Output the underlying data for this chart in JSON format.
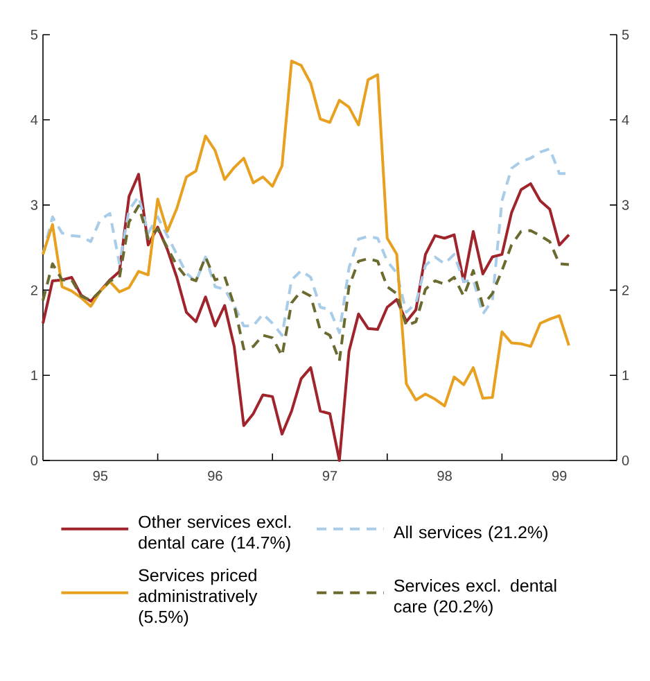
{
  "chart_data": {
    "type": "line",
    "x": [
      "1995-01",
      "1995-02",
      "1995-03",
      "1995-04",
      "1995-05",
      "1995-06",
      "1995-07",
      "1995-08",
      "1995-09",
      "1995-10",
      "1995-11",
      "1995-12",
      "1996-01",
      "1996-02",
      "1996-03",
      "1996-04",
      "1996-05",
      "1996-06",
      "1996-07",
      "1996-08",
      "1996-09",
      "1996-10",
      "1996-11",
      "1996-12",
      "1997-01",
      "1997-02",
      "1997-03",
      "1997-04",
      "1997-05",
      "1997-06",
      "1997-07",
      "1997-08",
      "1997-09",
      "1997-10",
      "1997-11",
      "1997-12",
      "1998-01",
      "1998-02",
      "1998-03",
      "1998-04",
      "1998-05",
      "1998-06",
      "1998-07",
      "1998-08",
      "1998-09",
      "1998-10",
      "1998-11",
      "1998-12",
      "1999-01",
      "1999-02",
      "1999-03",
      "1999-04",
      "1999-05",
      "1999-06",
      "1999-07",
      "1999-08"
    ],
    "series": [
      {
        "name": "Other services excl. dental care (14.7%)",
        "color": "#a0242c",
        "line_style": "solid",
        "values": [
          1.61,
          2.11,
          2.12,
          2.15,
          1.94,
          1.87,
          1.99,
          2.12,
          2.22,
          3.1,
          3.36,
          2.53,
          2.74,
          2.48,
          2.15,
          1.74,
          1.63,
          1.92,
          1.58,
          1.82,
          1.34,
          0.41,
          0.55,
          0.77,
          0.75,
          0.31,
          0.58,
          0.96,
          1.09,
          0.58,
          0.55,
          0,
          1.28,
          1.72,
          1.55,
          1.54,
          1.8,
          1.89,
          1.63,
          1.77,
          2.42,
          2.64,
          2.61,
          2.65,
          2.1,
          2.69,
          2.19,
          2.39,
          2.42,
          2.91,
          3.18,
          3.25,
          3.05,
          2.95,
          2.53,
          2.65
        ]
      },
      {
        "name": "All services (21.2%)",
        "color": "#a9cde8",
        "line_style": "dashed",
        "values": [
          2.42,
          2.86,
          2.67,
          2.64,
          2.63,
          2.57,
          2.83,
          2.9,
          2.31,
          2.94,
          3.1,
          2.67,
          2.86,
          2.64,
          2.42,
          2.2,
          2.1,
          2.39,
          2.04,
          2.01,
          1.82,
          1.58,
          1.58,
          1.72,
          1.61,
          1.47,
          2.12,
          2.23,
          2.15,
          1.8,
          1.77,
          1.5,
          2.26,
          2.6,
          2.63,
          2.61,
          2.34,
          2.2,
          1.74,
          1.85,
          2.29,
          2.39,
          2.31,
          2.42,
          2.1,
          2.12,
          1.72,
          1.88,
          3.05,
          3.43,
          3.51,
          3.55,
          3.62,
          3.66,
          3.37,
          3.37
        ]
      },
      {
        "name": "Services priced administratively (5.5%)",
        "color": "#e8a020",
        "line_style": "solid",
        "values": [
          2.42,
          2.77,
          2.04,
          1.99,
          1.91,
          1.81,
          1.99,
          2.1,
          1.98,
          2.03,
          2.22,
          2.18,
          3.07,
          2.69,
          2.96,
          3.33,
          3.4,
          3.81,
          3.64,
          3.3,
          3.44,
          3.55,
          3.26,
          3.33,
          3.22,
          3.46,
          4.69,
          4.64,
          4.43,
          4.01,
          3.97,
          4.23,
          4.15,
          3.94,
          4.47,
          4.53,
          2.61,
          2.42,
          0.9,
          0.71,
          0.78,
          0.72,
          0.64,
          0.98,
          0.89,
          1.09,
          0.73,
          0.74,
          1.51,
          1.38,
          1.37,
          1.34,
          1.61,
          1.66,
          1.7,
          1.35
        ]
      },
      {
        "name": "Services excl. dental care (20.2%)",
        "color": "#6b6b30",
        "line_style": "dashed",
        "values": [
          1.88,
          2.31,
          2.12,
          2.12,
          1.93,
          1.88,
          1.99,
          2.11,
          2.15,
          2.8,
          2.99,
          2.61,
          2.72,
          2.5,
          2.29,
          2.15,
          2.11,
          2.39,
          2.12,
          2.16,
          1.82,
          1.31,
          1.34,
          1.47,
          1.44,
          1.23,
          1.85,
          1.99,
          1.93,
          1.53,
          1.47,
          1.17,
          2.04,
          2.34,
          2.37,
          2.34,
          2.04,
          1.96,
          1.58,
          1.63,
          2.01,
          2.11,
          2.07,
          2.15,
          1.93,
          2.23,
          1.82,
          1.96,
          2.23,
          2.53,
          2.69,
          2.7,
          2.64,
          2.57,
          2.31,
          2.3
        ]
      }
    ],
    "xlim": [
      "1995-01",
      "2000-01"
    ],
    "xticks": [
      {
        "value": "1995-07",
        "label": "95"
      },
      {
        "value": "1996-01",
        "label": null
      },
      {
        "value": "1996-07",
        "label": "96"
      },
      {
        "value": "1997-01",
        "label": null
      },
      {
        "value": "1997-07",
        "label": "97"
      },
      {
        "value": "1998-01",
        "label": null
      },
      {
        "value": "1998-07",
        "label": "98"
      },
      {
        "value": "1999-01",
        "label": null
      },
      {
        "value": "1999-07",
        "label": "99"
      }
    ],
    "ylim": [
      0,
      5
    ],
    "yticks": [
      0,
      1,
      2,
      3,
      4,
      5
    ],
    "y2lim": [
      0,
      5
    ],
    "y2ticks": [
      0,
      1,
      2,
      3,
      4,
      5
    ],
    "grid": false,
    "legend": "bottom",
    "marker": "none"
  }
}
